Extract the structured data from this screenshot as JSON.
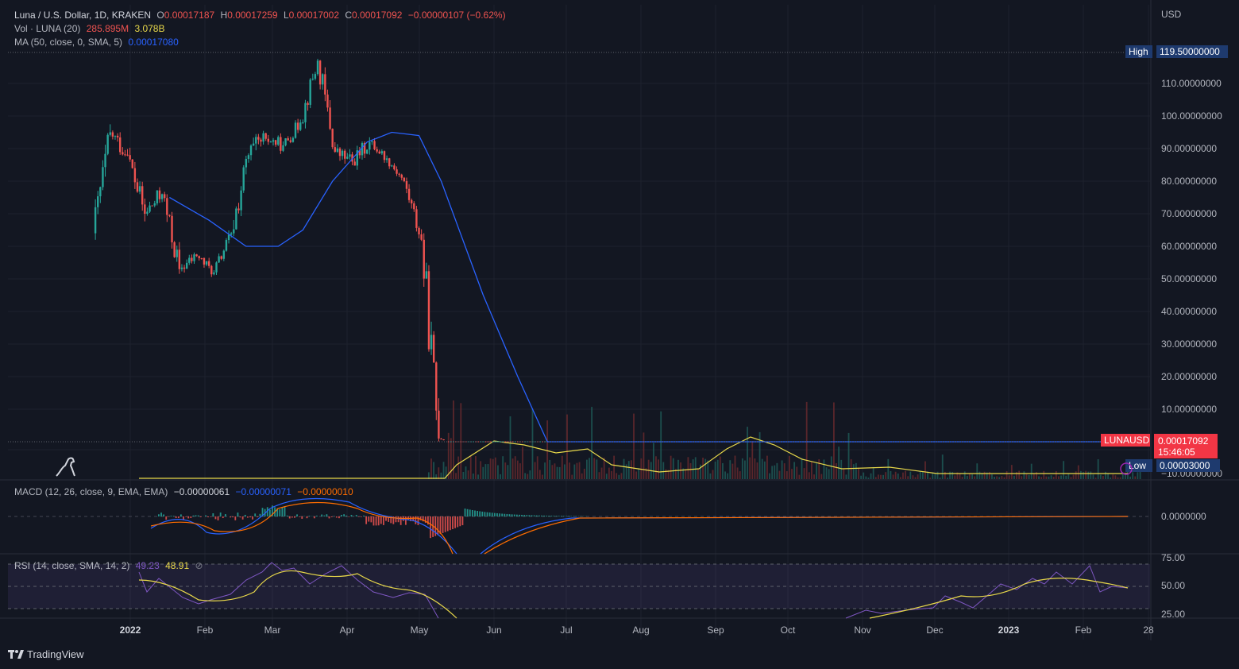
{
  "legend": {
    "symbol": "Luna / U.S. Dollar, 1D, KRAKEN",
    "o_label": "O",
    "o": "0.00017187",
    "h_label": "H",
    "h": "0.00017259",
    "l_label": "L",
    "l": "0.00017002",
    "c_label": "C",
    "c": "0.00017092",
    "change": "−0.00000107 (−0.62%)",
    "vol_label": "Vol · LUNA (20)",
    "vol_1": "285.895M",
    "vol_2": "3.078B",
    "ma_label": "MA (50, close, 0, SMA, 5)",
    "ma_value": "0.00017080",
    "macd_label": "MACD (12, 26, close, 9, EMA, EMA)",
    "macd_hist": "−0.00000061",
    "macd_line": "−0.00000071",
    "macd_signal": "−0.00000010",
    "rsi_label": "RSI (14, close, SMA, 14, 2)",
    "rsi_value": "49.23",
    "rsi_ma": "48.91"
  },
  "price_axis": {
    "currency": "USD",
    "ticks": [
      "110.00000000",
      "100.00000000",
      "90.00000000",
      "80.00000000",
      "70.00000000",
      "60.00000000",
      "50.00000000",
      "40.00000000",
      "30.00000000",
      "20.00000000",
      "10.00000000",
      "−10.00000000"
    ],
    "high_label": "High",
    "high_value": "119.50000000",
    "low_label": "Low",
    "low_value": "0.00003000",
    "last_symbol": "LUNAUSD",
    "last_value": "0.00017092",
    "countdown": "15:46:05"
  },
  "macd_axis": {
    "zero": "0.0000000"
  },
  "rsi_axis": {
    "ticks": [
      "75.00",
      "50.00",
      "25.00"
    ]
  },
  "time_axis": [
    "2022",
    "Feb",
    "Mar",
    "Apr",
    "May",
    "Jun",
    "Jul",
    "Aug",
    "Sep",
    "Oct",
    "Nov",
    "Dec",
    "2023",
    "Feb",
    "28"
  ],
  "footer": {
    "brand": "TradingView"
  },
  "colors": {
    "bg": "#131722",
    "up": "#26a69a",
    "down": "#ef5350",
    "ma": "#2962ff",
    "vol_ma": "#e8d84a",
    "macd": "#2962ff",
    "signal": "#ff6d00",
    "rsi": "#7e57c2",
    "rsi_ma": "#e8d84a",
    "high_badge": "#1e3a6e",
    "last_badge": "#f23645"
  },
  "chart_data": {
    "type": "candlestick",
    "x": [
      "2021-12-26",
      "2022-01-02",
      "2022-01-09",
      "2022-01-16",
      "2022-01-23",
      "2022-01-30",
      "2022-02-06",
      "2022-02-13",
      "2022-02-20",
      "2022-02-27",
      "2022-03-06",
      "2022-03-13",
      "2022-03-20",
      "2022-03-27",
      "2022-04-03",
      "2022-04-10",
      "2022-04-17",
      "2022-04-24",
      "2022-05-01",
      "2022-05-08",
      "2022-05-15"
    ],
    "weekly_ohlc": [
      [
        64,
        99,
        62,
        95
      ],
      [
        95,
        104,
        82,
        88
      ],
      [
        88,
        92,
        62,
        70
      ],
      [
        70,
        89,
        64,
        76
      ],
      [
        76,
        79,
        47,
        53
      ],
      [
        53,
        61,
        45,
        57
      ],
      [
        57,
        62,
        48,
        52
      ],
      [
        52,
        66,
        49,
        64
      ],
      [
        64,
        98,
        60,
        88
      ],
      [
        88,
        110,
        81,
        93
      ],
      [
        93,
        100,
        84,
        91
      ],
      [
        91,
        104,
        88,
        98
      ],
      [
        98,
        119.5,
        95,
        117
      ],
      [
        117,
        118,
        85,
        89
      ],
      [
        89,
        97,
        77,
        86
      ],
      [
        86,
        99,
        80,
        92
      ],
      [
        92,
        96,
        84,
        87
      ],
      [
        87,
        90,
        78,
        80
      ],
      [
        80,
        82,
        60,
        62
      ],
      [
        62,
        64,
        0.1,
        1
      ],
      [
        1,
        2,
        0.0001,
        0.0002
      ]
    ],
    "ma50_points": [
      [
        "2022-01-25",
        75
      ],
      [
        "2022-02-10",
        68
      ],
      [
        "2022-02-25",
        60
      ],
      [
        "2022-03-10",
        60
      ],
      [
        "2022-03-20",
        65
      ],
      [
        "2022-04-01",
        80
      ],
      [
        "2022-04-15",
        92
      ],
      [
        "2022-04-25",
        95
      ],
      [
        "2022-05-06",
        94
      ],
      [
        "2022-05-15",
        80
      ],
      [
        "2022-06-01",
        45
      ],
      [
        "2022-06-15",
        20
      ],
      [
        "2022-06-27",
        0.0002
      ],
      [
        "2023-02-22",
        0.00017
      ]
    ],
    "last_price": 0.00017092,
    "y_range": [
      -10,
      125
    ],
    "rsi_levels": [
      75,
      50,
      25
    ],
    "grid": true
  }
}
